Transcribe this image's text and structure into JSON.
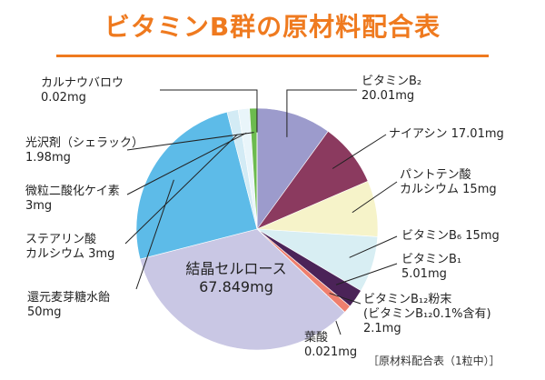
{
  "chart_data": {
    "type": "pie",
    "title": "ビタミンB群の原材料配合表",
    "categories": [
      "ビタミンB₂",
      "ナイアシン",
      "パントテン酸\nカルシウム",
      "ビタミンB₆",
      "ビタミンB₁",
      "ビタミンB₁₂粉末\n(ビタミンB₁₂0.1%含有)",
      "葉酸",
      "結晶セルロース",
      "還元麦芽糖水飴",
      "ステアリン酸\nカルシウム",
      "微粒二酸化ケイ素",
      "光沢剤（シェラック）",
      "カルナウバロウ"
    ],
    "values": [
      20.01,
      17.01,
      15,
      15,
      5.01,
      2.1,
      0.021,
      67.849,
      50,
      3,
      3,
      1.98,
      0.02
    ],
    "value_labels": [
      "20.01mg",
      "17.01mg",
      "15mg",
      "15mg",
      "5.01mg",
      "2.1mg",
      "0.021mg",
      "67.849mg",
      "50mg",
      "3mg",
      "3mg",
      "1.98mg",
      "0.02mg"
    ],
    "colors": [
      "#9c9bcc",
      "#8b3a5f",
      "#f6f3c9",
      "#d8eef3",
      "#4b2358",
      "#ef7f6e",
      "#6a8fb3",
      "#c9c7e4",
      "#5dbbe8",
      "#d3ebf5",
      "#e9f5fa",
      "#6cbb4f",
      "#bba97c"
    ],
    "annotation": "［原材料配合表（1粒中）］"
  }
}
